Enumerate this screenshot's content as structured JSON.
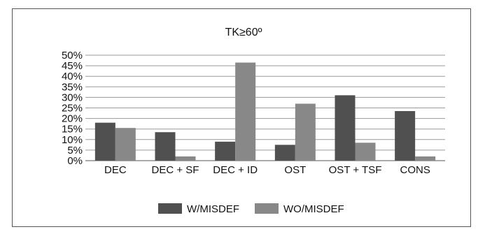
{
  "chart_data": {
    "type": "bar",
    "title": "TK≥60º",
    "categories": [
      "DEC",
      "DEC + SF",
      "DEC + ID",
      "OST",
      "OST + TSF",
      "CONS"
    ],
    "series": [
      {
        "name": "W/MISDEF",
        "color": "#505050",
        "values": [
          18,
          13.5,
          9,
          7.5,
          31,
          23.5
        ]
      },
      {
        "name": "WO/MISDEF",
        "color": "#888888",
        "values": [
          15.5,
          2,
          46.5,
          27,
          8.5,
          2
        ]
      }
    ],
    "ylim": [
      0,
      50
    ],
    "yticks": [
      "0%",
      "5%",
      "10%",
      "15%",
      "20%",
      "25%",
      "30%",
      "35%",
      "40%",
      "45%",
      "50%"
    ],
    "grid": true,
    "legend_position": "bottom"
  }
}
